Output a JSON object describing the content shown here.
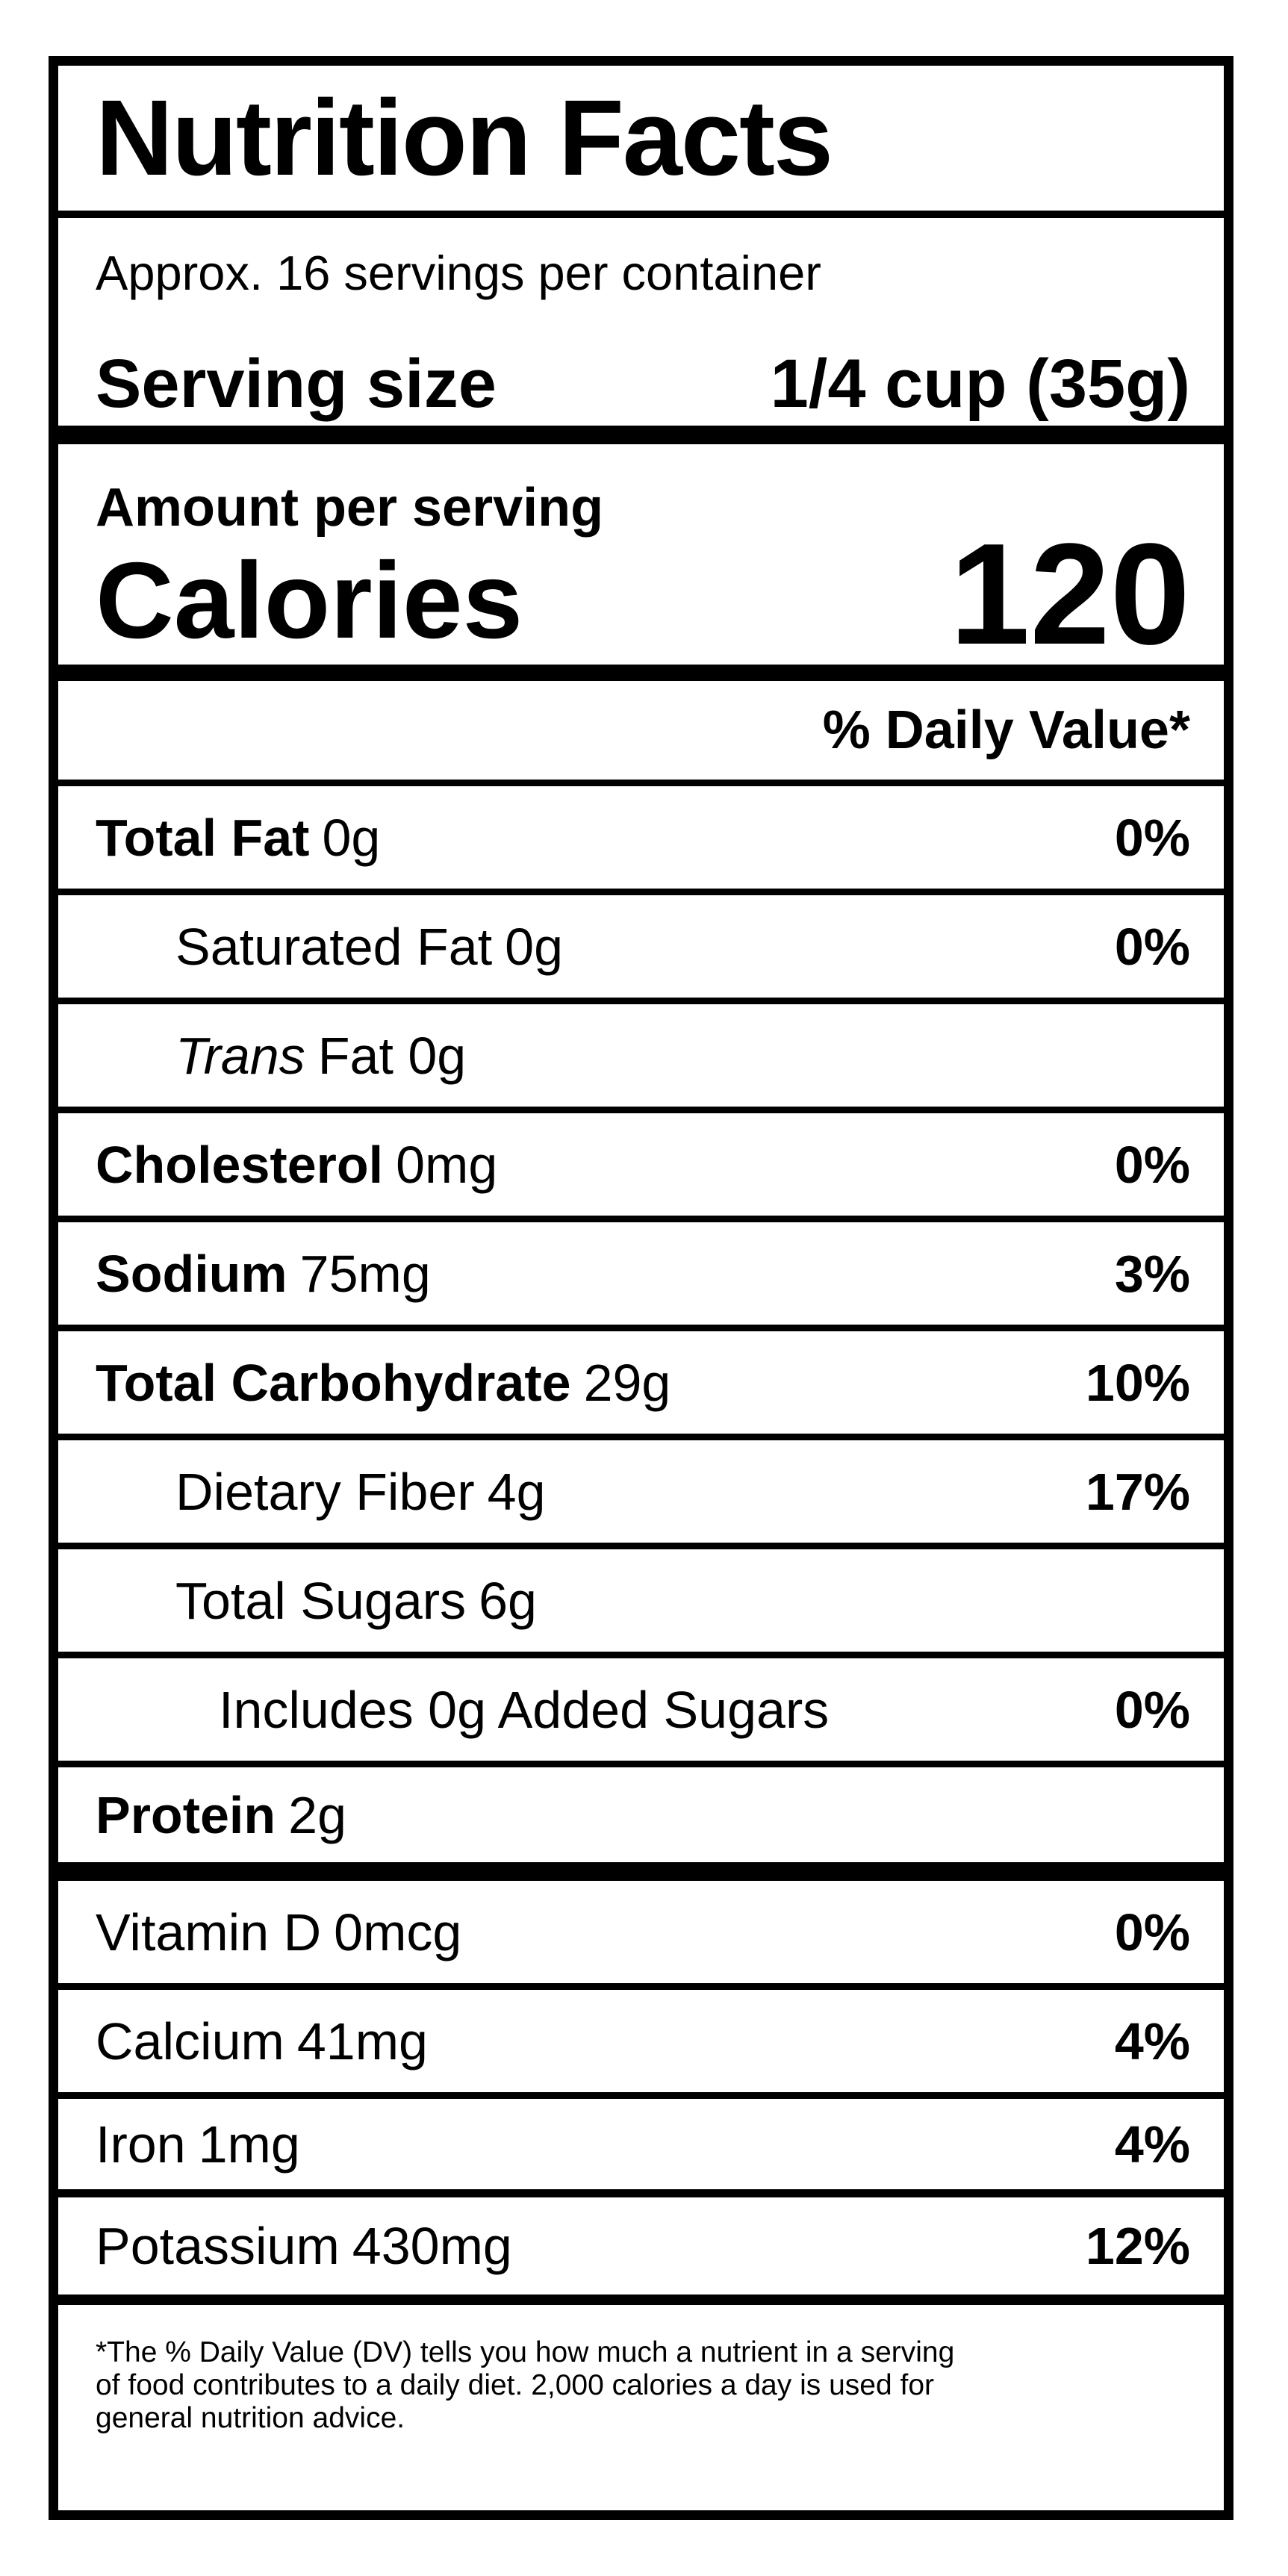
{
  "colors": {
    "text": "#000000",
    "background": "#ffffff"
  },
  "label": {
    "title": "Nutrition Facts",
    "servings_per_container": "Approx. 16 servings per container",
    "serving_size_label": "Serving size",
    "serving_size_value": "1/4 cup (35g)",
    "amount_per_serving_label": "Amount per serving",
    "calories_label": "Calories",
    "calories_value": "120",
    "daily_value_header": "% Daily Value*",
    "rows": [
      {
        "name": "Total Fat",
        "amount": "0g",
        "dv": "0%"
      },
      {
        "name": "Saturated Fat",
        "amount": "0g",
        "dv": "0%"
      },
      {
        "name": "Trans",
        "amount": "Fat 0g",
        "dv": ""
      },
      {
        "name": "Cholesterol",
        "amount": "0mg",
        "dv": "0%"
      },
      {
        "name": "Sodium",
        "amount": "75mg",
        "dv": "3%"
      },
      {
        "name": "Total Carbohydrate",
        "amount": "29g",
        "dv": "10%"
      },
      {
        "name": "Dietary Fiber",
        "amount": "4g",
        "dv": "17%"
      },
      {
        "name": "Total Sugars",
        "amount": "6g",
        "dv": ""
      },
      {
        "name": "Includes 0g Added Sugars",
        "amount": "",
        "dv": "0%"
      },
      {
        "name": "Protein",
        "amount": "2g",
        "dv": ""
      },
      {
        "name": "Vitamin D",
        "amount": "0mcg",
        "dv": "0%"
      },
      {
        "name": "Calcium",
        "amount": "41mg",
        "dv": "4%"
      },
      {
        "name": "Iron",
        "amount": "1mg",
        "dv": "4%"
      },
      {
        "name": "Potassium",
        "amount": "430mg",
        "dv": "12%"
      }
    ],
    "footnote_lines": [
      "*The % Daily Value (DV) tells you how much a nutrient in a serving",
      "of food contributes to a daily diet. 2,000 calories a day is used for",
      "general nutrition advice."
    ]
  }
}
